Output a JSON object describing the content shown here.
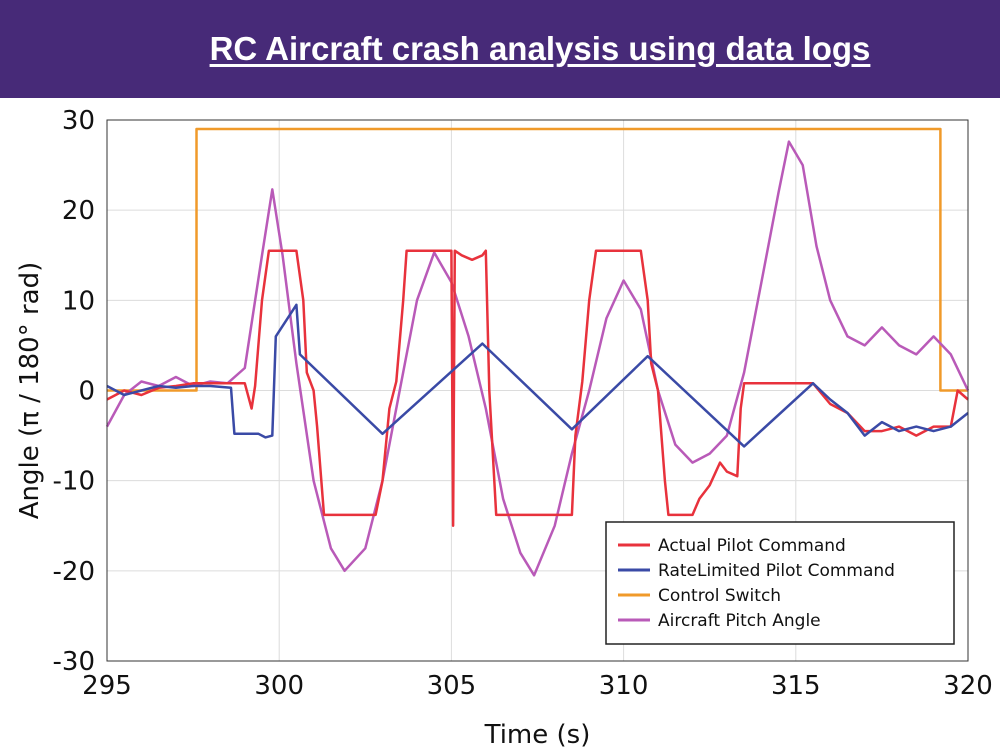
{
  "slide": {
    "title": "RC Aircraft crash analysis using data logs",
    "title_bar_color": "#472a78"
  },
  "chart_data": {
    "type": "line",
    "title": "",
    "xlabel": "Time (s)",
    "ylabel": "Angle (π / 180° rad)",
    "xlim": [
      295,
      320
    ],
    "ylim": [
      -30,
      30
    ],
    "xticks": [
      295,
      300,
      305,
      310,
      315,
      320
    ],
    "yticks": [
      30,
      20,
      10,
      0,
      -10,
      -20,
      -30
    ],
    "grid": true,
    "legend_position": "bottom-right",
    "series": [
      {
        "name": "Actual Pilot Command",
        "color": "#e8323c",
        "points": [
          [
            295,
            -1
          ],
          [
            295.5,
            0
          ],
          [
            296,
            -0.5
          ],
          [
            296.5,
            0.3
          ],
          [
            297,
            0.5
          ],
          [
            297.5,
            0.8
          ],
          [
            298,
            0.8
          ],
          [
            298.5,
            0.8
          ],
          [
            299,
            0.8
          ],
          [
            299.2,
            -2
          ],
          [
            299.3,
            0.5
          ],
          [
            299.5,
            10
          ],
          [
            299.7,
            15.5
          ],
          [
            300.5,
            15.5
          ],
          [
            300.7,
            10
          ],
          [
            300.8,
            2
          ],
          [
            301,
            0
          ],
          [
            301.1,
            -4
          ],
          [
            301.3,
            -13.8
          ],
          [
            302.8,
            -13.8
          ],
          [
            303,
            -10
          ],
          [
            303.2,
            -2
          ],
          [
            303.4,
            1
          ],
          [
            303.6,
            10
          ],
          [
            303.7,
            15.5
          ],
          [
            304.8,
            15.5
          ],
          [
            305,
            15.5
          ],
          [
            305.05,
            -15
          ],
          [
            305.1,
            15.5
          ],
          [
            305.3,
            15
          ],
          [
            305.6,
            14.5
          ],
          [
            305.9,
            15
          ],
          [
            306,
            15.5
          ],
          [
            306.1,
            0
          ],
          [
            306.3,
            -13.8
          ],
          [
            307.5,
            -13.8
          ],
          [
            308.5,
            -13.8
          ],
          [
            308.6,
            -5
          ],
          [
            308.8,
            1
          ],
          [
            309,
            10
          ],
          [
            309.2,
            15.5
          ],
          [
            310.5,
            15.5
          ],
          [
            310.7,
            10
          ],
          [
            310.8,
            3
          ],
          [
            311,
            0
          ],
          [
            311.2,
            -10
          ],
          [
            311.3,
            -13.8
          ],
          [
            312,
            -13.8
          ],
          [
            312.2,
            -12
          ],
          [
            312.5,
            -10.5
          ],
          [
            312.8,
            -8
          ],
          [
            313,
            -9
          ],
          [
            313.3,
            -9.5
          ],
          [
            313.4,
            -2
          ],
          [
            313.5,
            0.8
          ],
          [
            314,
            0.8
          ],
          [
            315,
            0.8
          ],
          [
            315.5,
            0.8
          ],
          [
            316,
            -1.5
          ],
          [
            316.5,
            -2.5
          ],
          [
            317,
            -4.5
          ],
          [
            317.5,
            -4.5
          ],
          [
            318,
            -4
          ],
          [
            318.5,
            -5
          ],
          [
            319,
            -4
          ],
          [
            319.5,
            -4
          ],
          [
            319.7,
            0
          ],
          [
            320,
            -1
          ]
        ]
      },
      {
        "name": "RateLimited Pilot Command",
        "color": "#3a4aa6",
        "points": [
          [
            295,
            0.5
          ],
          [
            295.5,
            -0.5
          ],
          [
            296,
            0
          ],
          [
            296.5,
            0.5
          ],
          [
            297,
            0.3
          ],
          [
            297.5,
            0.5
          ],
          [
            298,
            0.5
          ],
          [
            298.6,
            0.3
          ],
          [
            298.7,
            -4.8
          ],
          [
            299.4,
            -4.8
          ],
          [
            299.6,
            -5.2
          ],
          [
            299.8,
            -5
          ],
          [
            299.9,
            6
          ],
          [
            300.5,
            9.5
          ],
          [
            300.6,
            4
          ],
          [
            303,
            -4.8
          ],
          [
            305.9,
            5.2
          ],
          [
            308.5,
            -4.3
          ],
          [
            310.7,
            3.8
          ],
          [
            313.5,
            -6.2
          ],
          [
            315.5,
            0.8
          ],
          [
            316,
            -1
          ],
          [
            316.5,
            -2.5
          ],
          [
            317,
            -5
          ],
          [
            317.5,
            -3.5
          ],
          [
            318,
            -4.5
          ],
          [
            318.5,
            -4
          ],
          [
            319,
            -4.5
          ],
          [
            319.5,
            -4
          ],
          [
            320,
            -2.5
          ]
        ]
      },
      {
        "name": "Control Switch",
        "color": "#f09a2a",
        "points": [
          [
            295,
            0
          ],
          [
            297.6,
            0
          ],
          [
            297.6,
            29
          ],
          [
            319.2,
            29
          ],
          [
            319.2,
            0
          ],
          [
            320,
            0
          ]
        ]
      },
      {
        "name": "Aircraft Pitch Angle",
        "color": "#b95ab8",
        "points": [
          [
            295,
            -4
          ],
          [
            295.5,
            -0.5
          ],
          [
            296,
            1
          ],
          [
            296.5,
            0.5
          ],
          [
            297,
            1.5
          ],
          [
            297.5,
            0.5
          ],
          [
            298,
            1
          ],
          [
            298.5,
            0.8
          ],
          [
            299,
            2.5
          ],
          [
            299.5,
            15
          ],
          [
            299.8,
            22.3
          ],
          [
            300.1,
            15
          ],
          [
            300.5,
            3
          ],
          [
            301,
            -10
          ],
          [
            301.5,
            -17.5
          ],
          [
            301.9,
            -20
          ],
          [
            302.5,
            -17.5
          ],
          [
            303,
            -10
          ],
          [
            303.5,
            0
          ],
          [
            304,
            10
          ],
          [
            304.5,
            15.3
          ],
          [
            305,
            12
          ],
          [
            305.5,
            6
          ],
          [
            306,
            -2
          ],
          [
            306.5,
            -12
          ],
          [
            307,
            -18
          ],
          [
            307.4,
            -20.5
          ],
          [
            308,
            -15
          ],
          [
            308.5,
            -7
          ],
          [
            309,
            0
          ],
          [
            309.5,
            8
          ],
          [
            310,
            12.2
          ],
          [
            310.5,
            9
          ],
          [
            311,
            0
          ],
          [
            311.5,
            -6
          ],
          [
            312,
            -8
          ],
          [
            312.5,
            -7
          ],
          [
            313,
            -5
          ],
          [
            313.5,
            2
          ],
          [
            314,
            12
          ],
          [
            314.5,
            22
          ],
          [
            314.8,
            27.6
          ],
          [
            315.2,
            25
          ],
          [
            315.6,
            16
          ],
          [
            316,
            10
          ],
          [
            316.5,
            6
          ],
          [
            317,
            5
          ],
          [
            317.5,
            7
          ],
          [
            318,
            5
          ],
          [
            318.5,
            4
          ],
          [
            319,
            6
          ],
          [
            319.5,
            4
          ],
          [
            320,
            0
          ]
        ]
      }
    ]
  }
}
